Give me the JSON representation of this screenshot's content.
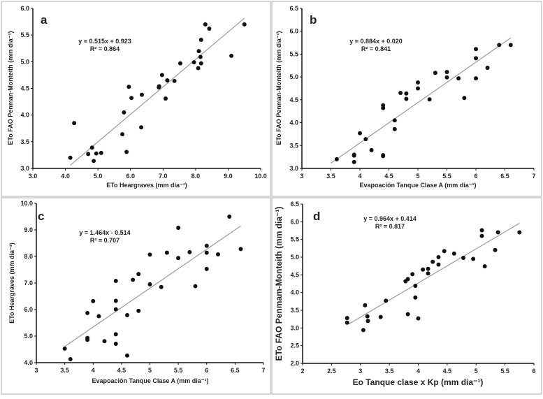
{
  "chart_data": [
    {
      "type": "scatter",
      "panel_label": "a",
      "xlabel": "ETo Heargraves (mm dia⁻¹)",
      "ylabel": "ETo FAO Penman-Monteith (mm dia⁻¹)",
      "xlim": [
        3,
        10
      ],
      "ylim": [
        3,
        6
      ],
      "xticks": [
        "3.0",
        "4.0",
        "5.0",
        "6.0",
        "7.0",
        "8.0",
        "9.0",
        "10.0"
      ],
      "yticks": [
        "3.0",
        "3.5",
        "4.0",
        "4.5",
        "5.0",
        "5.5",
        "6.0"
      ],
      "equation": "y = 0.515x + 0.923",
      "r2": "R² = 0.864",
      "trendline": {
        "slope": 0.515,
        "intercept": 0.923,
        "x_range": [
          4.15,
          9.5
        ]
      },
      "grid": false,
      "points": [
        [
          4.15,
          3.2
        ],
        [
          4.27,
          3.85
        ],
        [
          4.7,
          3.27
        ],
        [
          4.82,
          3.39
        ],
        [
          4.87,
          3.14
        ],
        [
          4.95,
          3.28
        ],
        [
          5.1,
          3.29
        ],
        [
          5.75,
          3.64
        ],
        [
          5.8,
          4.05
        ],
        [
          5.88,
          3.31
        ],
        [
          5.95,
          4.53
        ],
        [
          6.03,
          4.32
        ],
        [
          6.33,
          3.77
        ],
        [
          6.35,
          4.38
        ],
        [
          6.87,
          4.52
        ],
        [
          6.88,
          4.54
        ],
        [
          6.97,
          4.75
        ],
        [
          7.08,
          4.31
        ],
        [
          7.13,
          4.65
        ],
        [
          7.35,
          4.64
        ],
        [
          7.53,
          4.97
        ],
        [
          7.95,
          4.99
        ],
        [
          8.08,
          4.88
        ],
        [
          8.1,
          5.2
        ],
        [
          8.15,
          5.09
        ],
        [
          8.17,
          5.41
        ],
        [
          8.17,
          4.97
        ],
        [
          8.3,
          5.7
        ],
        [
          8.42,
          5.62
        ],
        [
          9.1,
          5.11
        ],
        [
          9.5,
          5.7
        ]
      ]
    },
    {
      "type": "scatter",
      "panel_label": "b",
      "xlabel": "Evapoación Tanque Clase A (mm dia⁻¹)",
      "ylabel": "ETo FAO Penman-Monteith (mm dia⁻¹)",
      "xlim": [
        3,
        7
      ],
      "ylim": [
        3,
        6.5
      ],
      "xticks": [
        "3",
        "3.5",
        "4",
        "4.5",
        "5",
        "5.5",
        "6",
        "6.5",
        "7"
      ],
      "yticks": [
        "3.0",
        "3.5",
        "4.0",
        "4.5",
        "5.0",
        "5.5",
        "6.0",
        "6.5"
      ],
      "equation": "y = 0.884x + 0.020",
      "r2": "R² = 0.841",
      "trendline": {
        "slope": 0.884,
        "intercept": 0.02,
        "x_range": [
          3.5,
          6.6
        ]
      },
      "grid": false,
      "points": [
        [
          3.6,
          3.2
        ],
        [
          3.9,
          3.3
        ],
        [
          3.9,
          3.28
        ],
        [
          3.9,
          3.14
        ],
        [
          4.0,
          3.77
        ],
        [
          4.1,
          3.64
        ],
        [
          4.2,
          3.4
        ],
        [
          4.4,
          4.38
        ],
        [
          4.4,
          4.32
        ],
        [
          4.4,
          3.29
        ],
        [
          4.4,
          3.27
        ],
        [
          4.6,
          4.05
        ],
        [
          4.6,
          3.86
        ],
        [
          4.7,
          4.65
        ],
        [
          4.8,
          4.64
        ],
        [
          4.8,
          4.52
        ],
        [
          5.0,
          4.88
        ],
        [
          5.0,
          4.75
        ],
        [
          5.2,
          4.51
        ],
        [
          5.3,
          5.09
        ],
        [
          5.5,
          5.11
        ],
        [
          5.5,
          4.99
        ],
        [
          5.7,
          4.97
        ],
        [
          5.8,
          4.54
        ],
        [
          6.0,
          5.61
        ],
        [
          6.0,
          5.41
        ],
        [
          6.0,
          4.97
        ],
        [
          6.2,
          5.2
        ],
        [
          6.4,
          5.7
        ],
        [
          6.6,
          5.7
        ]
      ]
    },
    {
      "type": "scatter",
      "panel_label": "c",
      "xlabel": "Evapoación Tanque Clase A (mm dia⁻¹)",
      "ylabel": "ETo Heargraves (mm dia⁻¹)",
      "xlim": [
        3,
        7
      ],
      "ylim": [
        4,
        10
      ],
      "xticks": [
        "3",
        "3.5",
        "4",
        "4.5",
        "5",
        "5.5",
        "6",
        "6.5",
        "7"
      ],
      "yticks": [
        "4.0",
        "5.0",
        "6.0",
        "7.0",
        "8.0",
        "9.0",
        "10.0"
      ],
      "equation": "y = 1.464x - 0.514",
      "r2": "R² = 0.707",
      "trendline": {
        "slope": 1.464,
        "intercept": -0.514,
        "x_range": [
          3.5,
          6.6
        ]
      },
      "grid": false,
      "points": [
        [
          3.5,
          4.53
        ],
        [
          3.6,
          4.13
        ],
        [
          3.9,
          5.87
        ],
        [
          3.9,
          4.93
        ],
        [
          3.9,
          4.86
        ],
        [
          4.0,
          6.32
        ],
        [
          4.1,
          5.75
        ],
        [
          4.2,
          4.81
        ],
        [
          4.4,
          7.08
        ],
        [
          4.4,
          6.33
        ],
        [
          4.4,
          6.01
        ],
        [
          4.4,
          5.07
        ],
        [
          4.4,
          4.71
        ],
        [
          4.6,
          5.79
        ],
        [
          4.6,
          4.27
        ],
        [
          4.7,
          7.12
        ],
        [
          4.8,
          7.34
        ],
        [
          4.8,
          5.95
        ],
        [
          5.0,
          8.07
        ],
        [
          5.0,
          6.95
        ],
        [
          5.2,
          6.85
        ],
        [
          5.3,
          8.14
        ],
        [
          5.5,
          9.08
        ],
        [
          5.5,
          7.94
        ],
        [
          5.7,
          8.16
        ],
        [
          5.8,
          6.88
        ],
        [
          6.0,
          8.4
        ],
        [
          6.0,
          8.14
        ],
        [
          6.0,
          7.53
        ],
        [
          6.2,
          8.08
        ],
        [
          6.4,
          9.5
        ],
        [
          6.6,
          8.28
        ]
      ]
    },
    {
      "type": "scatter",
      "panel_label": "d",
      "xlabel": "Eo Tanque clase x Kp (mm dia⁻¹)",
      "ylabel": "ETo FAO  Penmam-Monteith (mm dia⁻¹)",
      "xlim": [
        2,
        6
      ],
      "ylim": [
        2,
        6.5
      ],
      "xticks": [
        "2",
        "2.5",
        "3",
        "3.5",
        "4",
        "4.5",
        "5",
        "5.5",
        "6"
      ],
      "yticks": [
        "2.0",
        "2.5",
        "3.0",
        "3.5",
        "4.0",
        "4.5",
        "5.0",
        "5.5",
        "6.0",
        "6.5"
      ],
      "equation": "y = 0.964x + 0.414",
      "r2": "R² = 0.817",
      "trendline": {
        "slope": 0.964,
        "intercept": 0.414,
        "x_range": [
          2.8,
          5.75
        ]
      },
      "grid": false,
      "points": [
        [
          2.77,
          3.28
        ],
        [
          2.77,
          3.15
        ],
        [
          3.05,
          2.94
        ],
        [
          3.08,
          3.64
        ],
        [
          3.12,
          3.33
        ],
        [
          3.13,
          3.2
        ],
        [
          3.35,
          3.31
        ],
        [
          3.44,
          3.77
        ],
        [
          3.78,
          4.32
        ],
        [
          3.82,
          4.38
        ],
        [
          3.82,
          3.39
        ],
        [
          3.9,
          4.52
        ],
        [
          3.95,
          4.19
        ],
        [
          3.95,
          3.86
        ],
        [
          4.0,
          3.27
        ],
        [
          4.08,
          4.65
        ],
        [
          4.17,
          4.67
        ],
        [
          4.17,
          4.54
        ],
        [
          4.25,
          4.87
        ],
        [
          4.35,
          5.0
        ],
        [
          4.35,
          4.79
        ],
        [
          4.45,
          5.17
        ],
        [
          4.62,
          5.1
        ],
        [
          4.78,
          4.98
        ],
        [
          4.95,
          4.95
        ],
        [
          5.1,
          5.76
        ],
        [
          5.1,
          5.6
        ],
        [
          5.15,
          4.74
        ],
        [
          5.33,
          5.2
        ],
        [
          5.38,
          5.7
        ],
        [
          5.75,
          5.7
        ]
      ]
    }
  ],
  "colors": {
    "points": "#111111",
    "trendline": "#9a9a9a",
    "axis": "#111111",
    "panel_border": "#c8c8c8"
  }
}
